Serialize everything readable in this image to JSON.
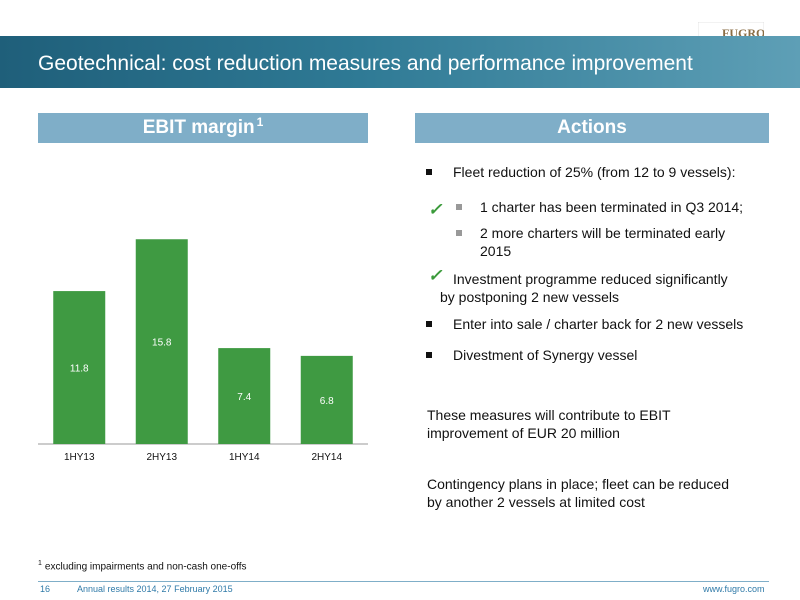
{
  "logo": {
    "text": "FUGRO"
  },
  "title": "Geotechnical: cost reduction measures and performance improvement",
  "left_header": {
    "label": "EBIT margin",
    "sup": "1"
  },
  "right_header": {
    "label": "Actions"
  },
  "chart_data": {
    "type": "bar",
    "categories": [
      "1HY13",
      "2HY13",
      "1HY14",
      "2HY14"
    ],
    "values": [
      11.8,
      15.8,
      7.4,
      6.8
    ],
    "labels": [
      "11.8",
      "15.8",
      "7.4",
      "6.8"
    ],
    "ylim": [
      0,
      19.6
    ],
    "bar_color": "#3f9a42",
    "grid": false
  },
  "actions": {
    "b1": "Fleet reduction of 25% (from 12 to 9 vessels):",
    "b1a": "1 charter has been terminated in Q3 2014;",
    "b1b_line1": "2 more charters will be terminated early",
    "b1b_line2": "2015",
    "b2_line1": "Investment programme reduced significantly",
    "b2_line2": "by postponing 2 new vessels",
    "b3": "Enter into sale / charter back for 2 new vessels",
    "b4": "Divestment of Synergy vessel"
  },
  "paragraphs": {
    "p1_line1": "These measures will contribute to EBIT",
    "p1_line2": "improvement of EUR 20 million",
    "p2_line1": "Contingency plans in place; fleet can be reduced",
    "p2_line2": "by another 2 vessels at limited cost"
  },
  "footnote": {
    "mark": "1",
    "text": "excluding impairments and non-cash one-offs"
  },
  "footer": {
    "page": "16",
    "event": "Annual results 2014, 27 February 2015",
    "url": "www.fugro.com"
  },
  "colors": {
    "accent": "#2f7a95",
    "header": "#7faec8",
    "check": "#3a9a3a"
  }
}
